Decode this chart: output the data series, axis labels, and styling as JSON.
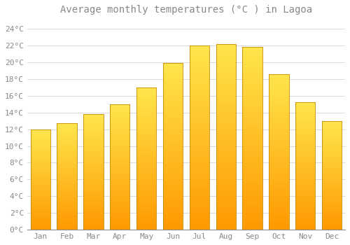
{
  "title": "Average monthly temperatures (°C ) in Lagoa",
  "months": [
    "Jan",
    "Feb",
    "Mar",
    "Apr",
    "May",
    "Jun",
    "Jul",
    "Aug",
    "Sep",
    "Oct",
    "Nov",
    "Dec"
  ],
  "values": [
    12.0,
    12.7,
    13.8,
    15.0,
    17.0,
    19.9,
    22.0,
    22.2,
    21.8,
    18.6,
    15.2,
    13.0
  ],
  "bar_color_top": "#FFD966",
  "bar_color_bottom": "#FFA500",
  "bar_color_edge": "#CC8800",
  "background_color": "#FFFFFF",
  "grid_color": "#CCCCCC",
  "text_color": "#888888",
  "ylim": [
    0,
    25
  ],
  "yticks": [
    0,
    2,
    4,
    6,
    8,
    10,
    12,
    14,
    16,
    18,
    20,
    22,
    24
  ],
  "title_fontsize": 10,
  "tick_fontsize": 8
}
